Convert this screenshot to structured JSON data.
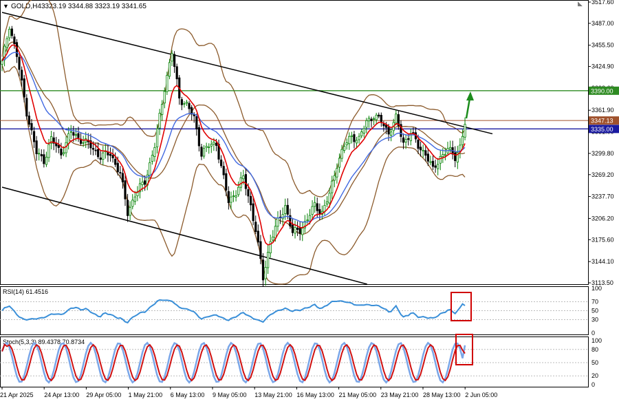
{
  "header": {
    "title": "GOLD,H4",
    "ohlc": "3323.19 3344.88 3323.19 3341.65"
  },
  "price_axis": {
    "ticks": [
      "3517.60",
      "3487.00",
      "3455.50",
      "3424.90",
      "3393.60",
      "3361.90",
      "3331.00",
      "3299.80",
      "3269.20",
      "3237.70",
      "3206.20",
      "3175.60",
      "3144.10",
      "3113.50"
    ],
    "flags": [
      {
        "label": "3390.00",
        "value": 3390.0,
        "color": "#2e8b22"
      },
      {
        "label": "3347.13",
        "value": 3347.13,
        "color": "#a0522d"
      },
      {
        "label": "3335.00",
        "value": 3335.0,
        "color": "#1a1aa0"
      }
    ]
  },
  "rsi": {
    "label": "RSI(14) 61.4516",
    "ticks": [
      "100",
      "70",
      "50",
      "30",
      "0"
    ],
    "value": 61.4516
  },
  "stoch": {
    "label": "Stoch(5,3,3) 89.4378 70.8734",
    "ticks": [
      "100",
      "80",
      "50",
      "20",
      "0"
    ],
    "k": 89.4378,
    "d": 70.8734
  },
  "time_axis": [
    "21 Apr 2025",
    "24 Apr 13:00",
    "29 Apr 05:00",
    "1 May 21:00",
    "6 May 13:00",
    "9 May 05:00",
    "13 May 21:00",
    "16 May 13:00",
    "21 May 05:00",
    "23 May 21:00",
    "28 May 13:00",
    "2 Jun 05:00"
  ],
  "colors": {
    "bull": "#008000",
    "bear": "#000000",
    "ema_fast": "#e00000",
    "ema_slow": "#4169e1",
    "bands": "#8b5a2b",
    "rsi": "#3a8fd8",
    "stoch_k": "#7aa6e8",
    "stoch_d": "#d01010",
    "highlight": "#d00000"
  },
  "chart_data": [
    {
      "type": "candlestick",
      "title": "GOLD,H4",
      "ohlc_last": {
        "open": 3323.19,
        "high": 3344.88,
        "low": 3323.19,
        "close": 3341.65
      },
      "x_range": [
        "21 Apr 2025",
        "2 Jun 05:00"
      ],
      "ylim": [
        3113.5,
        3517.6
      ],
      "close_path": [
        [
          0,
          3430
        ],
        [
          3,
          3485
        ],
        [
          6,
          3440
        ],
        [
          10,
          3360
        ],
        [
          14,
          3300
        ],
        [
          17,
          3290
        ],
        [
          20,
          3320
        ],
        [
          24,
          3300
        ],
        [
          28,
          3330
        ],
        [
          32,
          3320
        ],
        [
          36,
          3310
        ],
        [
          40,
          3295
        ],
        [
          44,
          3300
        ],
        [
          48,
          3270
        ],
        [
          51,
          3215
        ],
        [
          54,
          3240
        ],
        [
          58,
          3260
        ],
        [
          62,
          3310
        ],
        [
          66,
          3395
        ],
        [
          69,
          3445
        ],
        [
          72,
          3380
        ],
        [
          75,
          3370
        ],
        [
          78,
          3350
        ],
        [
          81,
          3300
        ],
        [
          84,
          3310
        ],
        [
          87,
          3315
        ],
        [
          89,
          3280
        ],
        [
          92,
          3230
        ],
        [
          95,
          3245
        ],
        [
          98,
          3265
        ],
        [
          101,
          3225
        ],
        [
          103,
          3190
        ],
        [
          106,
          3120
        ],
        [
          109,
          3175
        ],
        [
          112,
          3200
        ],
        [
          115,
          3225
        ],
        [
          118,
          3185
        ],
        [
          121,
          3190
        ],
        [
          124,
          3205
        ],
        [
          127,
          3225
        ],
        [
          130,
          3215
        ],
        [
          133,
          3240
        ],
        [
          136,
          3285
        ],
        [
          139,
          3310
        ],
        [
          142,
          3325
        ],
        [
          145,
          3320
        ],
        [
          148,
          3345
        ],
        [
          151,
          3355
        ],
        [
          154,
          3345
        ],
        [
          157,
          3330
        ],
        [
          160,
          3350
        ],
        [
          163,
          3315
        ],
        [
          166,
          3330
        ],
        [
          169,
          3310
        ],
        [
          172,
          3300
        ],
        [
          175,
          3275
        ],
        [
          178,
          3295
        ],
        [
          181,
          3305
        ],
        [
          184,
          3295
        ],
        [
          186,
          3310
        ],
        [
          188,
          3341.65
        ]
      ],
      "trend_lines": [
        {
          "name": "channel-upper",
          "from": [
            "21 Apr 2025",
            3505
          ],
          "to": [
            "2 Jun 05:00",
            3328
          ]
        },
        {
          "name": "channel-lower",
          "from": [
            "21 Apr 2025",
            3265
          ],
          "to": [
            "23 May 21:00",
            3115
          ]
        }
      ],
      "horizontal_levels": [
        3390.0,
        3347.13,
        3335.0
      ],
      "annotation": "green arrow pointing up toward 3390.00"
    },
    {
      "type": "line",
      "title": "RSI(14) 61.4516",
      "ylim": [
        0,
        100
      ],
      "levels": [
        70,
        50,
        30
      ],
      "last": 61.4516
    },
    {
      "type": "line",
      "title": "Stoch(5,3,3) 89.4378 70.8734",
      "ylim": [
        0,
        100
      ],
      "levels": [
        80,
        50,
        20
      ],
      "series": [
        {
          "name": "%K",
          "last": 89.4378
        },
        {
          "name": "%D",
          "last": 70.8734
        }
      ]
    }
  ]
}
